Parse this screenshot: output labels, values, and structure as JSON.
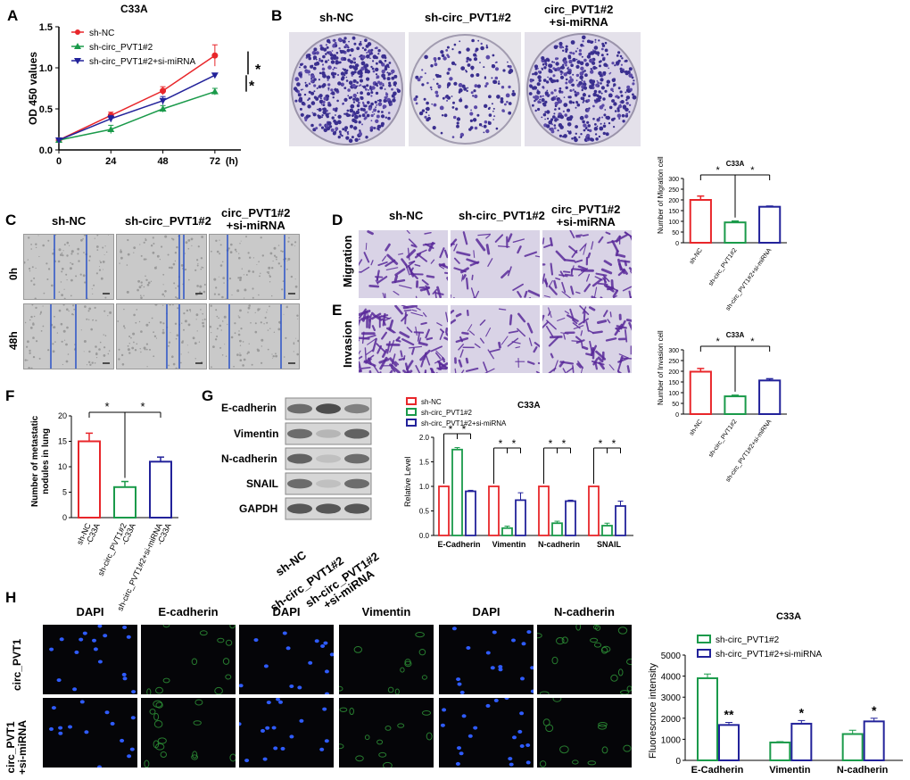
{
  "panel_labels": {
    "A": "A",
    "B": "B",
    "C": "C",
    "D": "D",
    "E": "E",
    "F": "F",
    "G": "G",
    "H": "H"
  },
  "panelA": {
    "title": "C33A",
    "ylabel": "OD 450 values",
    "xunit": "(h)",
    "sig": [
      "*",
      "*"
    ]
  },
  "panelB": {
    "headers": [
      "sh-NC",
      "sh-circ_PVT1#2",
      "circ_PVT1#2\n+si-miRNA"
    ]
  },
  "panelC": {
    "headers": [
      "sh-NC",
      "sh-circ_PVT1#2",
      "circ_PVT1#2\n+si-miRNA"
    ],
    "rows": [
      "0h",
      "48h"
    ]
  },
  "panelDE": {
    "headers": [
      "sh-NC",
      "sh-circ_PVT1#2",
      "circ_PVT1#2\n+si-miRNA"
    ],
    "rows": [
      "Migration",
      "Invasion"
    ]
  },
  "panelG": {
    "blot_labels": [
      "E-cadherin",
      "Vimentin",
      "N-cadherin",
      "SNAIL",
      "GAPDH"
    ],
    "lane_labels": [
      "sh-NC",
      "sh-circ_PVT1#2",
      "sh-circ_PVT1#2\n+si-miRNA"
    ]
  },
  "panelH": {
    "col_headers": [
      "DAPI",
      "E-cadherin",
      "DAPI",
      "Vimentin",
      "DAPI",
      "N-cadherin"
    ],
    "row_labels": [
      "circ_PVT1",
      "circ_PVT1\n+si-miRNA"
    ]
  },
  "colors": {
    "red": "#e8262a",
    "green": "#1a9a4a",
    "blue": "#22229a"
  },
  "chart_data": [
    {
      "id": "A",
      "type": "line",
      "title": "C33A",
      "xlabel": "(h)",
      "ylabel": "OD 450 values",
      "x": [
        0,
        24,
        48,
        72
      ],
      "xlim": [
        0,
        84
      ],
      "ylim": [
        0.0,
        1.5
      ],
      "yticks": [
        0.0,
        0.5,
        1.0,
        1.5
      ],
      "series": [
        {
          "name": "sh-NC",
          "color": "#e8262a",
          "marker": "circle",
          "values": [
            0.12,
            0.42,
            0.72,
            1.15
          ],
          "errors": [
            0.02,
            0.04,
            0.05,
            0.13
          ]
        },
        {
          "name": "sh-circ_PVT1#2",
          "color": "#1a9a4a",
          "marker": "triangle",
          "values": [
            0.12,
            0.25,
            0.5,
            0.71
          ],
          "errors": [
            0.02,
            0.05,
            0.04,
            0.04
          ]
        },
        {
          "name": "sh-circ_PVT1#2+si-miRNA",
          "color": "#22229a",
          "marker": "triangle-down",
          "values": [
            0.12,
            0.38,
            0.6,
            0.91
          ],
          "errors": [
            0.02,
            0.04,
            0.05,
            0.02
          ]
        }
      ]
    },
    {
      "id": "migration",
      "type": "bar",
      "title": "C33A",
      "ylabel": "Number of Migration cell",
      "categories": [
        "sh-NC",
        "sh-circ_PVT1#2",
        "sh-circ_PVT1#2+si-miRNA"
      ],
      "values": [
        200,
        95,
        168
      ],
      "errors": [
        18,
        6,
        3
      ],
      "colors": [
        "#e8262a",
        "#1a9a4a",
        "#22229a"
      ],
      "ylim": [
        0,
        300
      ],
      "yticks": [
        0,
        50,
        100,
        150,
        200,
        250,
        300
      ],
      "sig": [
        "*",
        "*"
      ]
    },
    {
      "id": "invasion",
      "type": "bar",
      "title": "C33A",
      "ylabel": "Number of Invasion cell",
      "categories": [
        "sh-NC",
        "sh-circ_PVT1#2",
        "sh-circ_PVT1#2+si-miRNA"
      ],
      "values": [
        198,
        83,
        157
      ],
      "errors": [
        15,
        5,
        8
      ],
      "colors": [
        "#e8262a",
        "#1a9a4a",
        "#22229a"
      ],
      "ylim": [
        0,
        300
      ],
      "yticks": [
        0,
        50,
        100,
        150,
        200,
        250,
        300
      ],
      "sig": [
        "*",
        "*"
      ]
    },
    {
      "id": "F",
      "type": "bar",
      "ylabel": "Number of metastatic\nnodules in lung",
      "categories": [
        "sh-NC\n-C33A",
        "sh-circ_PVT1#2\n-C33A",
        "sh-circ_PVT1#2+si-miRNA\n-C33A"
      ],
      "values": [
        15,
        6,
        11
      ],
      "errors": [
        1.6,
        1.1,
        0.9
      ],
      "colors": [
        "#e8262a",
        "#1a9a4a",
        "#22229a"
      ],
      "ylim": [
        0,
        20
      ],
      "yticks": [
        0,
        5,
        10,
        15,
        20
      ],
      "sig": [
        "*",
        "*"
      ]
    },
    {
      "id": "G",
      "type": "bar",
      "title": "C33A",
      "ylabel": "Relative Level",
      "categories": [
        "E-Cadherin",
        "Vimentin",
        "N-cadherin",
        "SNAIL"
      ],
      "ylim": [
        0.0,
        2.0
      ],
      "yticks": [
        0.0,
        0.5,
        1.0,
        1.5,
        2.0
      ],
      "series": [
        {
          "name": "sh-NC",
          "color": "#e8262a",
          "values": [
            1.0,
            1.0,
            1.0,
            1.0
          ],
          "errors": [
            0,
            0,
            0,
            0
          ]
        },
        {
          "name": "sh-circ_PVT1#2",
          "color": "#1a9a4a",
          "values": [
            1.75,
            0.15,
            0.25,
            0.2
          ],
          "errors": [
            0.04,
            0.04,
            0.04,
            0.05
          ]
        },
        {
          "name": "sh-circ_PVT1#2+si-miRNA",
          "color": "#22229a",
          "values": [
            0.9,
            0.72,
            0.7,
            0.6
          ],
          "errors": [
            0.02,
            0.15,
            0.02,
            0.1
          ]
        }
      ],
      "sig": [
        "*",
        "*"
      ]
    },
    {
      "id": "H",
      "type": "bar",
      "title": "C33A",
      "ylabel": "Fluorescrnce intensity",
      "categories": [
        "E-Cadherin",
        "Vimentin",
        "N-cadherin"
      ],
      "ylim": [
        0,
        5000
      ],
      "yticks": [
        0,
        1000,
        2000,
        3000,
        4000,
        5000
      ],
      "series": [
        {
          "name": "sh-circ_PVT1#2",
          "color": "#1a9a4a",
          "values": [
            3900,
            850,
            1250
          ],
          "errors": [
            200,
            40,
            180
          ]
        },
        {
          "name": "sh-circ_PVT1#2+si-miRNA",
          "color": "#22229a",
          "values": [
            1680,
            1740,
            1850
          ],
          "errors": [
            120,
            150,
            150
          ]
        }
      ],
      "sig": [
        "**",
        "*",
        "*"
      ]
    }
  ]
}
